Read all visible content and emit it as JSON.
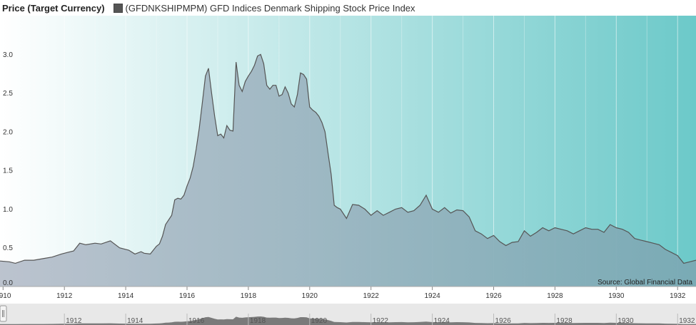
{
  "header": {
    "title": "Price (Target Currency)",
    "series_label": "(GFDNKSHIPMPM) GFD Indices Denmark Shipping Stock Price Index",
    "swatch_color": "#555555"
  },
  "source": "Source: Global Financial Data",
  "chart_data": {
    "type": "area",
    "title": "",
    "ylabel": "Price (Target Currency)",
    "xlabel": "",
    "xlim": [
      1909.9,
      1932.6
    ],
    "ylim": [
      0.0,
      3.5
    ],
    "x_ticks": [
      "1910",
      "1912",
      "1914",
      "1916",
      "1918",
      "1920",
      "1922",
      "1924",
      "1926",
      "1928",
      "1930",
      "1932"
    ],
    "y_ticks": [
      "0.0",
      "0.5",
      "1.0",
      "1.5",
      "2.0",
      "2.5",
      "3.0"
    ],
    "grid": true,
    "legend": "top-left",
    "line_color": "#555555",
    "fill_color": "#8fa8b8",
    "background_gradient": [
      "#ffffff",
      "#6cc9c9"
    ],
    "series": [
      {
        "name": "(GFDNKSHIPMPM) GFD Indices Denmark Shipping Stock Price Index",
        "x": [
          1909.9,
          1910.2,
          1910.4,
          1910.7,
          1911.0,
          1911.3,
          1911.6,
          1911.9,
          1912.1,
          1912.3,
          1912.5,
          1912.7,
          1913.0,
          1913.2,
          1913.5,
          1913.8,
          1914.0,
          1914.1,
          1914.3,
          1914.5,
          1914.6,
          1914.8,
          1915.0,
          1915.1,
          1915.2,
          1915.3,
          1915.4,
          1915.5,
          1915.6,
          1915.7,
          1915.8,
          1915.9,
          1916.0,
          1916.1,
          1916.2,
          1916.3,
          1916.4,
          1916.5,
          1916.6,
          1916.7,
          1916.8,
          1916.9,
          1917.0,
          1917.1,
          1917.2,
          1917.3,
          1917.4,
          1917.5,
          1917.6,
          1917.7,
          1917.8,
          1917.9,
          1918.0,
          1918.1,
          1918.2,
          1918.3,
          1918.4,
          1918.5,
          1918.6,
          1918.7,
          1918.8,
          1918.9,
          1919.0,
          1919.1,
          1919.2,
          1919.3,
          1919.4,
          1919.5,
          1919.6,
          1919.7,
          1919.8,
          1919.9,
          1920.0,
          1920.1,
          1920.2,
          1920.3,
          1920.4,
          1920.5,
          1920.6,
          1920.7,
          1920.8,
          1920.9,
          1921.0,
          1921.2,
          1921.4,
          1921.6,
          1921.8,
          1922.0,
          1922.2,
          1922.4,
          1922.6,
          1922.8,
          1923.0,
          1923.2,
          1923.4,
          1923.6,
          1923.8,
          1924.0,
          1924.2,
          1924.4,
          1924.6,
          1924.8,
          1925.0,
          1925.2,
          1925.4,
          1925.6,
          1925.8,
          1926.0,
          1926.2,
          1926.4,
          1926.6,
          1926.8,
          1927.0,
          1927.2,
          1927.4,
          1927.6,
          1927.8,
          1928.0,
          1928.2,
          1928.4,
          1928.6,
          1928.8,
          1929.0,
          1929.2,
          1929.4,
          1929.6,
          1929.8,
          1930.0,
          1930.2,
          1930.4,
          1930.6,
          1930.8,
          1931.0,
          1931.2,
          1931.4,
          1931.6,
          1931.8,
          1932.0,
          1932.2,
          1932.4,
          1932.6
        ],
        "values": [
          0.33,
          0.32,
          0.3,
          0.34,
          0.34,
          0.36,
          0.38,
          0.42,
          0.44,
          0.46,
          0.56,
          0.54,
          0.56,
          0.55,
          0.59,
          0.5,
          0.48,
          0.47,
          0.42,
          0.45,
          0.43,
          0.42,
          0.52,
          0.55,
          0.65,
          0.8,
          0.86,
          0.92,
          1.12,
          1.14,
          1.13,
          1.18,
          1.3,
          1.4,
          1.55,
          1.78,
          2.05,
          2.38,
          2.72,
          2.82,
          2.5,
          2.2,
          1.95,
          1.97,
          1.92,
          2.08,
          2.02,
          2.01,
          2.9,
          2.6,
          2.52,
          2.65,
          2.72,
          2.78,
          2.86,
          2.98,
          3.0,
          2.88,
          2.6,
          2.55,
          2.6,
          2.6,
          2.46,
          2.48,
          2.58,
          2.5,
          2.36,
          2.32,
          2.48,
          2.76,
          2.74,
          2.68,
          2.32,
          2.28,
          2.25,
          2.2,
          2.12,
          2.0,
          1.72,
          1.45,
          1.05,
          1.02,
          1.0,
          0.88,
          1.06,
          1.05,
          1.0,
          0.92,
          0.98,
          0.92,
          0.96,
          1.0,
          1.02,
          0.96,
          0.98,
          1.05,
          1.18,
          1.0,
          0.96,
          1.02,
          0.95,
          0.99,
          0.98,
          0.9,
          0.72,
          0.68,
          0.62,
          0.66,
          0.58,
          0.53,
          0.57,
          0.58,
          0.72,
          0.65,
          0.7,
          0.76,
          0.72,
          0.76,
          0.74,
          0.72,
          0.68,
          0.72,
          0.76,
          0.74,
          0.74,
          0.7,
          0.8,
          0.76,
          0.74,
          0.7,
          0.62,
          0.6,
          0.58,
          0.56,
          0.54,
          0.48,
          0.44,
          0.4,
          0.3,
          0.32,
          0.34
        ]
      }
    ],
    "navigator": {
      "labels": [
        "1912",
        "1914",
        "1916",
        "1918",
        "1920",
        "1922",
        "1924",
        "1926",
        "1928",
        "1930",
        "1932"
      ]
    }
  }
}
